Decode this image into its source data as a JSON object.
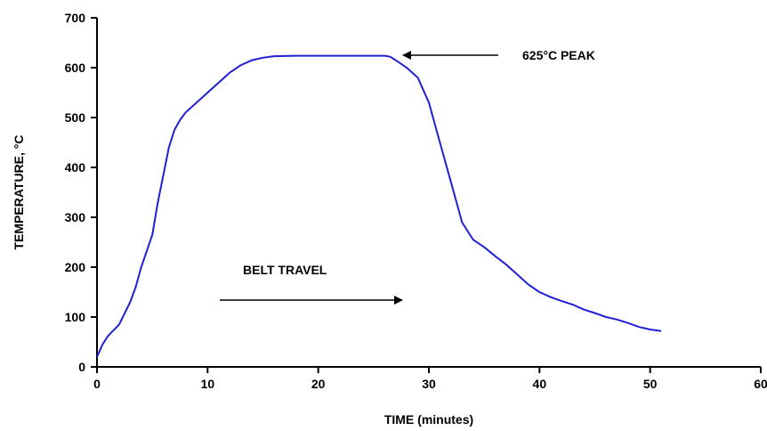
{
  "chart_data": {
    "type": "line",
    "title": "",
    "xlabel": "TIME (minutes)",
    "ylabel": "TEMPERATURE, °C",
    "xlim": [
      0,
      60
    ],
    "ylim": [
      0,
      700
    ],
    "x_ticks": [
      0,
      10,
      20,
      30,
      40,
      50,
      60
    ],
    "y_ticks": [
      0,
      100,
      200,
      300,
      400,
      500,
      600,
      700
    ],
    "x_tick_labels": [
      "0",
      "10",
      "20",
      "30",
      "40",
      "50",
      "60"
    ],
    "y_tick_labels": [
      "0",
      "100",
      "200",
      "300",
      "400",
      "500",
      "600",
      "700"
    ],
    "grid": false,
    "line_color": "#1f1fd6",
    "series": [
      {
        "x": [
          0,
          0.5,
          1,
          2,
          3,
          3.5,
          4,
          5,
          5.5,
          6,
          6.5,
          7,
          7.5,
          8,
          9,
          10,
          11,
          12,
          13,
          14,
          15,
          16,
          18,
          20,
          22,
          24,
          26,
          26.5,
          27,
          28,
          29,
          30,
          31,
          32,
          33,
          34,
          35,
          36,
          37,
          38,
          39,
          40,
          41,
          42,
          43,
          44,
          45,
          46,
          47,
          48,
          49,
          50,
          51
        ],
        "y": [
          20,
          45,
          62,
          85,
          130,
          160,
          200,
          265,
          330,
          385,
          440,
          475,
          495,
          510,
          530,
          550,
          570,
          590,
          605,
          615,
          620,
          623,
          624,
          624,
          624,
          624,
          624,
          622,
          615,
          600,
          580,
          530,
          450,
          370,
          290,
          255,
          240,
          222,
          205,
          185,
          165,
          150,
          140,
          132,
          125,
          115,
          108,
          100,
          95,
          88,
          80,
          75,
          72
        ]
      }
    ],
    "annotations": [
      {
        "text": "625°C PEAK",
        "arrow": "left",
        "at": [
          27.5,
          625
        ]
      },
      {
        "text": "BELT TRAVEL",
        "arrow": "right",
        "at": [
          27.5,
          135
        ]
      }
    ]
  }
}
